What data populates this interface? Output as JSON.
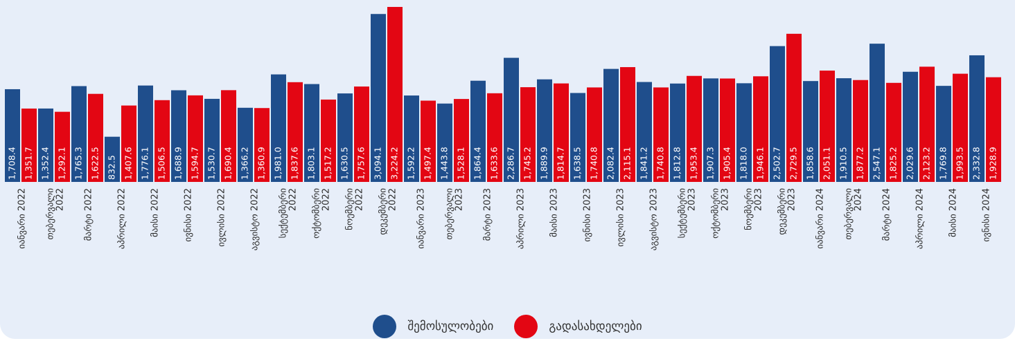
{
  "chart_data": {
    "type": "bar",
    "categories": [
      "იანვარი 2022",
      "თებერვალი 2022",
      "მარტი 2022",
      "აპრილი 2022",
      "მაისი 2022",
      "ივნისი 2022",
      "ივლისი 2022",
      "აგვისტო 2022",
      "სექტემბერი 2022",
      "ოქტომბერი 2022",
      "ნოემბერი 2022",
      "დეკემბერი 2022",
      "იანვარი 2023",
      "თებერვალი 2023",
      "მარტი 2023",
      "აპრილი 2023",
      "მაისი 2023",
      "ივნისი 2023",
      "ივლისი 2023",
      "აგვისტო 2023",
      "სექტემბერი 2023",
      "ოქტომბერი 2023",
      "ნოემბერი 2023",
      "დეკემბერი 2023",
      "იანვარი 2024",
      "თებერვალი 2024",
      "მარტი 2024",
      "აპრილი 2024",
      "მაისი 2024",
      "ივნისი 2024"
    ],
    "category_lines": [
      [
        "იანვარი 2022"
      ],
      [
        "თებერვალი",
        "2022"
      ],
      [
        "მარტი 2022"
      ],
      [
        "აპრილი 2022"
      ],
      [
        "მაისი 2022"
      ],
      [
        "ივნისი 2022"
      ],
      [
        "ივლისი 2022"
      ],
      [
        "აგვისტო 2022"
      ],
      [
        "სექტემბერი",
        "2022"
      ],
      [
        "ოქტომბერი",
        "2022"
      ],
      [
        "ნოემბერი",
        "2022"
      ],
      [
        "დეკემბერი",
        "2022"
      ],
      [
        "იანვარი 2023"
      ],
      [
        "თებერვალი",
        "2023"
      ],
      [
        "მარტი 2023"
      ],
      [
        "აპრილი 2023"
      ],
      [
        "მაისი 2023"
      ],
      [
        "ივნისი 2023"
      ],
      [
        "ივლისი 2023"
      ],
      [
        "აგვისტო 2023"
      ],
      [
        "სექტემბერი",
        "2023"
      ],
      [
        "ოქტომბერი",
        "2023"
      ],
      [
        "ნოემბერი",
        "2023"
      ],
      [
        "დეკემბერი",
        "2023"
      ],
      [
        "იანვარი 2024"
      ],
      [
        "თებერვალი",
        "2024"
      ],
      [
        "მარტი 2024"
      ],
      [
        "აპრილი 2024"
      ],
      [
        "მაისი 2024"
      ],
      [
        "ივნისი 2024"
      ]
    ],
    "series": [
      {
        "name": "შემოსულობები",
        "color": "#1f4e8c",
        "values": [
          1708.4,
          1352.4,
          1765.3,
          832.5,
          1776.1,
          1688.9,
          1530.7,
          1366.2,
          1981.0,
          1803.1,
          1630.5,
          3094.1,
          1592.2,
          1443.8,
          1864.4,
          2286.7,
          1889.9,
          1638.5,
          2082.4,
          1841.2,
          1812.8,
          1907.3,
          1818.0,
          2502.7,
          1858.6,
          1910.5,
          2547.1,
          2029.6,
          1769.8,
          2332.8
        ],
        "labels": [
          "1,708.4",
          "1,352.4",
          "1,765.3",
          "832.5",
          "1,776.1",
          "1,688.9",
          "1,530.7",
          "1,366.2",
          "1,981.0",
          "1,803.1",
          "1,630.5",
          "3,094.1",
          "1,592.2",
          "1,443.8",
          "1,864.4",
          "2,286.7",
          "1,889.9",
          "1,638.5",
          "2,082.4",
          "1,841.2",
          "1,812.8",
          "1,907.3",
          "1,818.0",
          "2,502.7",
          "1,858.6",
          "1,910.5",
          "2,547.1",
          "2,029.6",
          "1,769.8",
          "2,332.8"
        ]
      },
      {
        "name": "გადასახდელები",
        "color": "#e30613",
        "values": [
          1351.7,
          1292.1,
          1622.5,
          1407.6,
          1506.5,
          1594.7,
          1690.4,
          1360.9,
          1837.6,
          1517.2,
          1757.6,
          3224.2,
          1497.4,
          1528.1,
          1633.6,
          1745.2,
          1814.7,
          1740.8,
          2115.1,
          1740.8,
          1953.4,
          1905.4,
          1946.1,
          2729.5,
          2051.1,
          1877.2,
          1825.2,
          2123.2,
          1993.5,
          1928.9
        ],
        "labels": [
          "1,351.7",
          "1,292.1",
          "1,622.5",
          "1,407.6",
          "1,506.5",
          "1,594.7",
          "1,690.4",
          "1,360.9",
          "1,837.6",
          "1,517.2",
          "1,757.6",
          "3,224.2",
          "1,497.4",
          "1,528.1",
          "1,633.6",
          "1,745.2",
          "1,814.7",
          "1,740.8",
          "2,115.1",
          "1,740.8",
          "1,953.4",
          "1,905.4",
          "1,946.1",
          "2,729.5",
          "2,051.1",
          "1,877.2",
          "1,825.2",
          "2,123.2",
          "1,993.5",
          "1,928.9"
        ]
      }
    ],
    "ylim": [
      0,
      3250
    ],
    "legend_position": "bottom",
    "grid": false
  },
  "legend": {
    "items": [
      {
        "label": "შემოსულობები",
        "color": "#1f4e8c"
      },
      {
        "label": "გადასახდელები",
        "color": "#e30613"
      }
    ]
  }
}
